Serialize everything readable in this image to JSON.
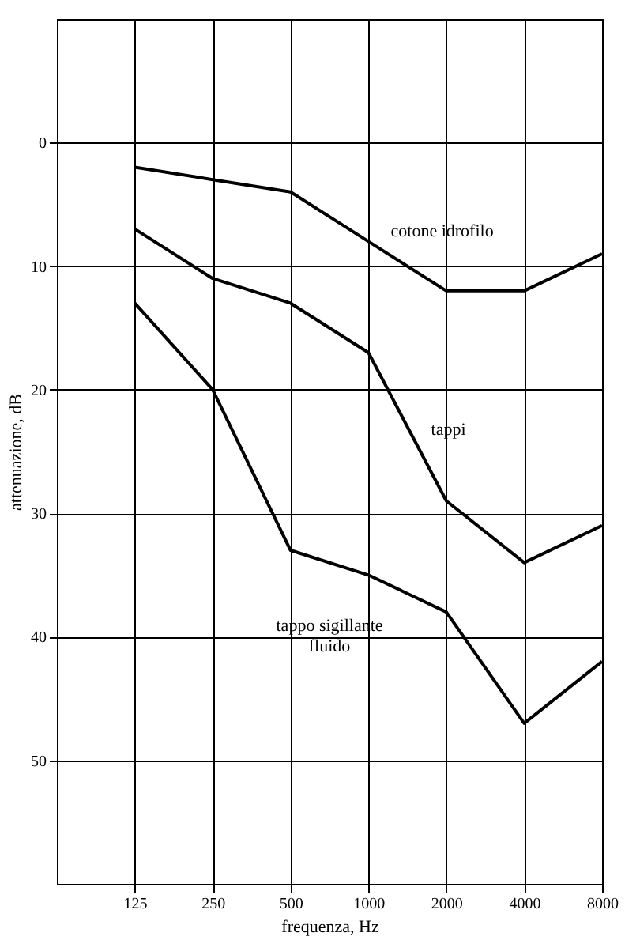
{
  "chart_data": {
    "type": "line",
    "xlabel": "frequenza, Hz",
    "ylabel": "attenuazione, dB",
    "x": [
      125,
      250,
      500,
      1000,
      2000,
      4000,
      8000
    ],
    "xlim": [
      62.5,
      8000
    ],
    "xticks": [
      125,
      250,
      500,
      1000,
      2000,
      4000,
      8000
    ],
    "log": "x",
    "ylim": [
      60,
      -10
    ],
    "yticks": [
      0,
      10,
      20,
      30,
      40,
      50
    ],
    "grid": true,
    "marker": "none",
    "line_style": "solid",
    "series": [
      {
        "name": "cotone idrofilo",
        "color": "#000000",
        "values": [
          2,
          3,
          4,
          8,
          12,
          12,
          9
        ]
      },
      {
        "name": "tappi",
        "color": "#000000",
        "values": [
          7,
          11,
          13,
          17,
          29,
          34,
          31
        ]
      },
      {
        "name": "tappo sigillante\nfluido",
        "color": "#000000",
        "values": [
          13,
          20,
          33,
          35,
          38,
          47,
          42
        ]
      }
    ]
  }
}
